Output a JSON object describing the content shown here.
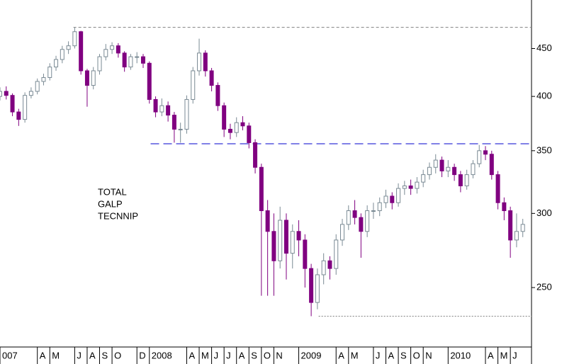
{
  "chart_data": {
    "type": "candlestick",
    "yscale": "log",
    "up_color": "#7a8a94",
    "down_color": "#800080",
    "annotations": [
      "TOTAL",
      "GALP",
      "TECNNIP"
    ],
    "xlim": [
      0,
      42.7
    ],
    "ylim": [
      216,
      507
    ],
    "yticks": [
      250,
      300,
      350,
      400,
      450
    ],
    "xticks": [
      {
        "value": 0,
        "label": "007"
      },
      {
        "value": 3,
        "label": "A"
      },
      {
        "value": 4,
        "label": "M"
      },
      {
        "value": 6,
        "label": "J"
      },
      {
        "value": 7,
        "label": "A"
      },
      {
        "value": 8,
        "label": "S"
      },
      {
        "value": 9,
        "label": "O"
      },
      {
        "value": 11,
        "label": "D"
      },
      {
        "value": 12,
        "label": "2008"
      },
      {
        "value": 15,
        "label": "A"
      },
      {
        "value": 16,
        "label": "M"
      },
      {
        "value": 17,
        "label": "J"
      },
      {
        "value": 18,
        "label": "J"
      },
      {
        "value": 19,
        "label": "A"
      },
      {
        "value": 20,
        "label": "S"
      },
      {
        "value": 21,
        "label": "O"
      },
      {
        "value": 22,
        "label": "N"
      },
      {
        "value": 24,
        "label": "2009"
      },
      {
        "value": 27,
        "label": "A"
      },
      {
        "value": 28,
        "label": "M"
      },
      {
        "value": 30,
        "label": "J"
      },
      {
        "value": 31,
        "label": "A"
      },
      {
        "value": 32,
        "label": "S"
      },
      {
        "value": 33,
        "label": "O"
      },
      {
        "value": 34,
        "label": "N"
      },
      {
        "value": 36,
        "label": "2010"
      },
      {
        "value": 39,
        "label": "A"
      },
      {
        "value": 40,
        "label": "M"
      },
      {
        "value": 41,
        "label": "J"
      }
    ],
    "reference_lines": [
      {
        "value": 474,
        "x_from": 5.9,
        "color": "#808080",
        "dash": "4 3"
      },
      {
        "value": 356,
        "x_from": 12.1,
        "color": "#0000cc",
        "dash": "12 6"
      },
      {
        "value": 233,
        "x_from": 25.6,
        "color": "#808080",
        "dash": "2 2"
      }
    ],
    "x": [
      0,
      0.5,
      1,
      1.5,
      2,
      2.5,
      3,
      3.5,
      4,
      4.5,
      5,
      5.5,
      6,
      6.5,
      7,
      7.5,
      8,
      8.5,
      9,
      9.5,
      10,
      10.5,
      11,
      11.5,
      12,
      12.5,
      13,
      13.5,
      14,
      14.5,
      15,
      15.5,
      16,
      16.5,
      17,
      17.5,
      18,
      18.5,
      19,
      19.5,
      20,
      20.5,
      21,
      21.5,
      22,
      22.5,
      23,
      23.5,
      24,
      24.5,
      25,
      25.5,
      26,
      26.5,
      27,
      27.5,
      28,
      28.5,
      29,
      29.5,
      30,
      30.5,
      31,
      31.5,
      32,
      32.5,
      33,
      33.5,
      34,
      34.5,
      35,
      35.5,
      36,
      36.5,
      37,
      37.5,
      38,
      38.5,
      39,
      39.5,
      40,
      40.5,
      41,
      41.5,
      42
    ],
    "open": [
      400,
      405,
      401,
      385,
      378,
      401,
      405,
      415,
      419,
      430,
      438,
      449,
      453,
      469,
      426,
      411,
      426,
      441,
      449,
      453,
      445,
      430,
      441,
      441,
      434,
      397,
      385,
      391,
      382,
      369,
      369,
      397,
      426,
      445,
      426,
      411,
      391,
      369,
      366,
      375,
      372,
      357,
      336,
      302,
      287,
      267,
      295,
      272,
      287,
      281,
      262,
      241,
      258,
      267,
      262,
      281,
      292,
      302,
      297,
      287,
      302,
      302,
      308,
      313,
      308,
      319,
      321,
      319,
      324,
      330,
      336,
      342,
      333,
      336,
      330,
      321,
      330,
      339,
      350,
      347,
      330,
      308,
      302,
      281,
      287
    ],
    "high": [
      409,
      410,
      403,
      388,
      404,
      409,
      418,
      423,
      434,
      442,
      453,
      458,
      474,
      470,
      428,
      430,
      444,
      455,
      457,
      456,
      447,
      444,
      446,
      444,
      436,
      400,
      398,
      395,
      385,
      375,
      401,
      430,
      461,
      448,
      429,
      414,
      394,
      374,
      380,
      381,
      375,
      360,
      339,
      310,
      300,
      305,
      300,
      292,
      295,
      285,
      265,
      262,
      272,
      270,
      285,
      296,
      306,
      310,
      300,
      306,
      308,
      312,
      318,
      316,
      323,
      325,
      326,
      328,
      334,
      340,
      347,
      345,
      342,
      339,
      333,
      334,
      342,
      355,
      354,
      350,
      333,
      312,
      305,
      300,
      296
    ],
    "low": [
      396,
      397,
      381,
      372,
      375,
      398,
      402,
      411,
      416,
      426,
      434,
      444,
      450,
      422,
      390,
      407,
      422,
      437,
      444,
      440,
      425,
      427,
      434,
      429,
      393,
      380,
      381,
      376,
      357,
      357,
      365,
      393,
      421,
      420,
      405,
      386,
      362,
      360,
      362,
      368,
      352,
      331,
      245,
      245,
      245,
      262,
      255,
      262,
      270,
      250,
      233,
      237,
      252,
      255,
      258,
      277,
      288,
      292,
      269,
      283,
      296,
      298,
      304,
      303,
      305,
      314,
      314,
      315,
      320,
      326,
      331,
      328,
      328,
      325,
      316,
      318,
      327,
      336,
      342,
      326,
      303,
      295,
      269,
      276,
      283
    ],
    "close": [
      405,
      401,
      385,
      378,
      401,
      405,
      415,
      419,
      430,
      438,
      449,
      453,
      469,
      426,
      411,
      426,
      441,
      449,
      453,
      445,
      430,
      441,
      441,
      434,
      397,
      385,
      391,
      382,
      369,
      369,
      397,
      426,
      445,
      426,
      411,
      391,
      369,
      366,
      375,
      372,
      357,
      336,
      302,
      287,
      267,
      295,
      272,
      287,
      281,
      262,
      241,
      258,
      267,
      262,
      281,
      292,
      302,
      297,
      287,
      302,
      302,
      308,
      313,
      308,
      319,
      321,
      319,
      324,
      330,
      336,
      342,
      333,
      336,
      330,
      321,
      330,
      339,
      350,
      347,
      330,
      308,
      302,
      281,
      287,
      292
    ]
  }
}
